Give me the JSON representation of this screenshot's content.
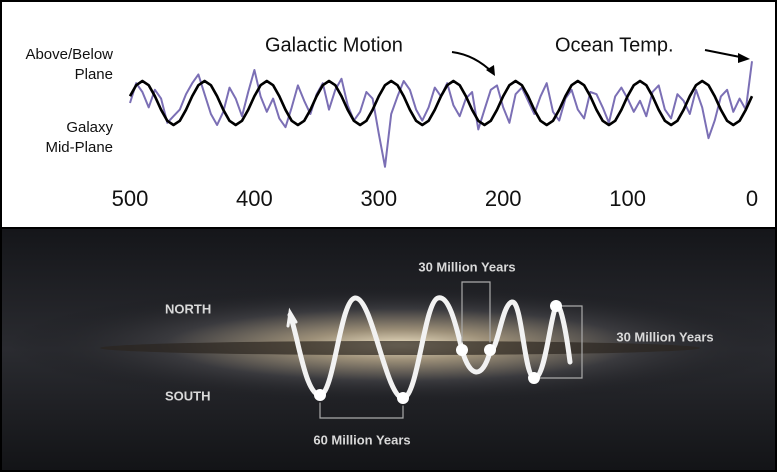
{
  "chart_data": {
    "type": "line",
    "x": [
      500,
      495,
      490,
      485,
      480,
      475,
      470,
      465,
      460,
      455,
      450,
      445,
      440,
      435,
      430,
      425,
      420,
      415,
      410,
      405,
      400,
      395,
      390,
      385,
      380,
      375,
      370,
      365,
      360,
      355,
      350,
      345,
      340,
      335,
      330,
      325,
      320,
      315,
      310,
      305,
      300,
      295,
      290,
      285,
      280,
      275,
      270,
      265,
      260,
      255,
      250,
      245,
      240,
      235,
      230,
      225,
      220,
      215,
      210,
      205,
      200,
      195,
      190,
      185,
      180,
      175,
      170,
      165,
      160,
      155,
      150,
      145,
      140,
      135,
      130,
      125,
      120,
      115,
      110,
      105,
      100,
      95,
      90,
      85,
      80,
      75,
      70,
      65,
      60,
      55,
      50,
      45,
      40,
      35,
      30,
      25,
      20,
      15,
      10,
      5,
      0
    ],
    "series": [
      {
        "name": "Galactic Motion",
        "color": "#000000",
        "values": [
          0.31,
          0.81,
          1,
          0.81,
          0.31,
          -0.31,
          -0.81,
          -1,
          -0.81,
          -0.31,
          0.31,
          0.81,
          1,
          0.81,
          0.31,
          -0.31,
          -0.81,
          -1,
          -0.81,
          -0.31,
          0.31,
          0.81,
          1,
          0.81,
          0.31,
          -0.31,
          -0.81,
          -1,
          -0.81,
          -0.31,
          0.31,
          0.81,
          1,
          0.81,
          0.31,
          -0.31,
          -0.81,
          -1,
          -0.81,
          -0.31,
          0.31,
          0.81,
          1,
          0.81,
          0.31,
          -0.31,
          -0.81,
          -1,
          -0.81,
          -0.31,
          0.31,
          0.81,
          1,
          0.81,
          0.31,
          -0.31,
          -0.81,
          -1,
          -0.81,
          -0.31,
          0.31,
          0.81,
          1,
          0.81,
          0.31,
          -0.31,
          -0.81,
          -1,
          -0.81,
          -0.31,
          0.31,
          0.81,
          1,
          0.81,
          0.31,
          -0.31,
          -0.81,
          -1,
          -0.81,
          -0.31,
          0.31,
          0.81,
          1,
          0.81,
          0.31,
          -0.31,
          -0.81,
          -1,
          -0.81,
          -0.31,
          0.31,
          0.81,
          1,
          0.81,
          0.31,
          -0.31,
          -0.81,
          -1,
          -0.81,
          -0.31,
          0.31
        ]
      },
      {
        "name": "Ocean Temp.",
        "color": "#7b6fb5",
        "values": [
          0.0,
          0.9,
          0.5,
          -0.2,
          0.6,
          0.2,
          -0.9,
          -0.6,
          -0.3,
          0.4,
          0.9,
          1.3,
          0.4,
          -0.5,
          -1.0,
          -0.4,
          0.7,
          0.2,
          -0.6,
          0.5,
          1.5,
          0.3,
          -0.4,
          0.2,
          -0.7,
          -1.1,
          -0.2,
          0.8,
          0.1,
          -0.5,
          0.4,
          0.9,
          -0.3,
          0.6,
          1.1,
          -0.1,
          -0.8,
          -0.4,
          0.5,
          0.2,
          -1.4,
          -2.9,
          -0.5,
          0.3,
          1.0,
          0.6,
          -0.3,
          -0.8,
          -0.2,
          0.7,
          0.3,
          0.9,
          -0.1,
          -0.6,
          0.2,
          0.5,
          -1.2,
          -0.3,
          0.6,
          0.8,
          -0.2,
          -0.9,
          0.4,
          0.7,
          0.1,
          -0.5,
          0.3,
          0.9,
          -0.4,
          -0.8,
          0.2,
          0.6,
          -0.3,
          -0.7,
          0.5,
          0.4,
          -0.2,
          -0.9,
          0.3,
          0.7,
          0.2,
          -0.4,
          0.1,
          -0.6,
          0.5,
          0.8,
          -0.3,
          -0.7,
          0.4,
          0.1,
          -0.5,
          0.6,
          -0.2,
          -1.6,
          -0.8,
          0.3,
          0.6,
          -0.4,
          0.2,
          -0.3,
          1.9
        ]
      }
    ],
    "xlim": [
      500,
      0
    ],
    "xticks": [
      500,
      400,
      300,
      200,
      100,
      0
    ],
    "ylim": [
      -3,
      2
    ],
    "annotations": [
      "Above/Below",
      "Plane",
      "Galaxy",
      "Mid-Plane"
    ]
  },
  "illustration": {
    "north": "NORTH",
    "south": "SOUTH",
    "top_span": "30 Million Years",
    "right_span": "30 Million Years",
    "bottom_span": "60 Million Years"
  }
}
